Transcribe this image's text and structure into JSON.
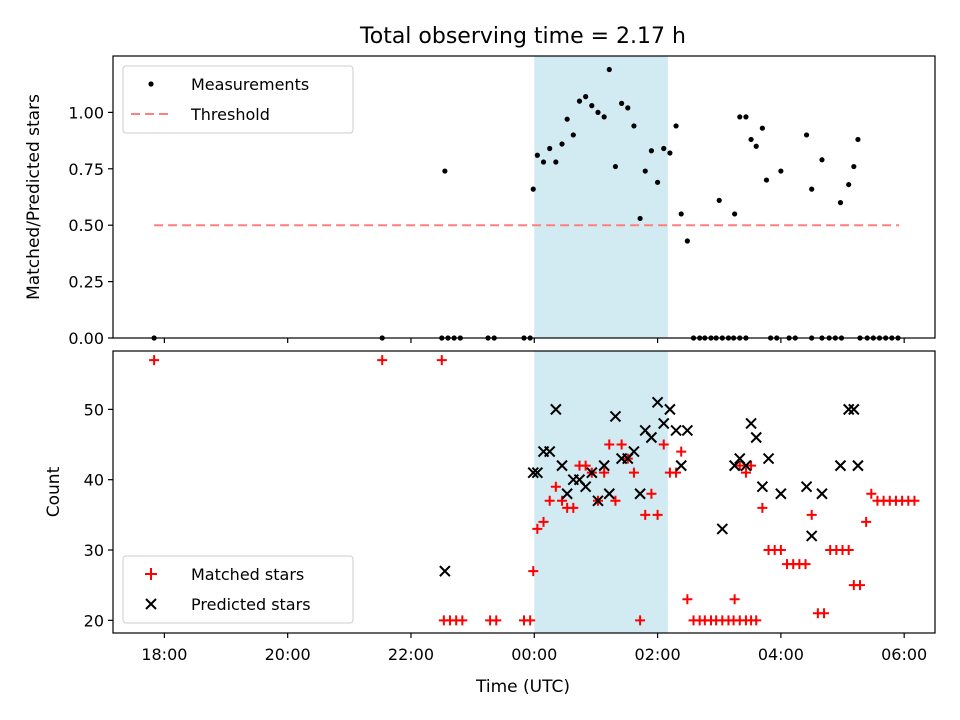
{
  "chart_data": {
    "type": "scatter",
    "title": "Total observing time = 2.17 h",
    "xlabel": "Time (UTC)",
    "x_unit": "hours (UTC, continuous across midnight)",
    "xlim": [
      "17:10",
      "06:30"
    ],
    "x_ticks": [
      "18:00",
      "20:00",
      "22:00",
      "00:00",
      "02:00",
      "04:00",
      "06:00"
    ],
    "shaded_interval": [
      "00:00",
      "02:10"
    ],
    "shade_color": "#add8e6",
    "panels": [
      {
        "id": "ratio",
        "ylabel": "Matched/Predicted stars",
        "ylim": [
          0,
          1.25
        ],
        "y_ticks": [
          "0.00",
          "0.25",
          "0.50",
          "0.75",
          "1.00"
        ],
        "legend": {
          "placement": "top-left",
          "entries": [
            "Measurements",
            "Threshold"
          ]
        },
        "threshold": {
          "name": "Threshold",
          "value": 0.5,
          "x_range": [
            "17:50",
            "05:55"
          ],
          "color": "#ff7f7f",
          "style": "dashed"
        },
        "series": [
          {
            "name": "Measurements",
            "marker": "dot",
            "color": "#000000",
            "points": [
              [
                "17:50",
                0.0
              ],
              [
                "21:32",
                0.0
              ],
              [
                "22:30",
                0.0
              ],
              [
                "22:36",
                0.0
              ],
              [
                "22:42",
                0.0
              ],
              [
                "22:48",
                0.0
              ],
              [
                "23:15",
                0.0
              ],
              [
                "23:21",
                0.0
              ],
              [
                "23:50",
                0.0
              ],
              [
                "23:56",
                0.0
              ],
              [
                "22:33",
                0.74
              ],
              [
                "23:59",
                0.66
              ],
              [
                "00:03",
                0.81
              ],
              [
                "00:09",
                0.78
              ],
              [
                "00:15",
                0.84
              ],
              [
                "00:21",
                0.78
              ],
              [
                "00:27",
                0.86
              ],
              [
                "00:32",
                0.97
              ],
              [
                "00:38",
                0.9
              ],
              [
                "00:44",
                1.05
              ],
              [
                "00:50",
                1.07
              ],
              [
                "00:56",
                1.03
              ],
              [
                "01:02",
                1.0
              ],
              [
                "01:08",
                0.98
              ],
              [
                "01:13",
                1.19
              ],
              [
                "01:19",
                0.76
              ],
              [
                "01:25",
                1.04
              ],
              [
                "01:31",
                1.02
              ],
              [
                "01:37",
                0.94
              ],
              [
                "01:43",
                0.53
              ],
              [
                "01:48",
                0.74
              ],
              [
                "01:54",
                0.83
              ],
              [
                "02:00",
                0.69
              ],
              [
                "02:06",
                0.84
              ],
              [
                "02:12",
                0.82
              ],
              [
                "02:18",
                0.94
              ],
              [
                "02:23",
                0.55
              ],
              [
                "02:29",
                0.43
              ],
              [
                "02:35",
                0.0
              ],
              [
                "02:41",
                0.0
              ],
              [
                "02:46",
                0.0
              ],
              [
                "02:52",
                0.0
              ],
              [
                "02:57",
                0.0
              ],
              [
                "03:03",
                0.0
              ],
              [
                "03:09",
                0.0
              ],
              [
                "03:14",
                0.0
              ],
              [
                "03:20",
                0.0
              ],
              [
                "03:26",
                0.0
              ],
              [
                "03:00",
                0.61
              ],
              [
                "03:15",
                0.55
              ],
              [
                "03:20",
                0.98
              ],
              [
                "03:26",
                0.98
              ],
              [
                "03:31",
                0.88
              ],
              [
                "03:36",
                0.85
              ],
              [
                "03:42",
                0.93
              ],
              [
                "03:46",
                0.7
              ],
              [
                "04:00",
                0.74
              ],
              [
                "04:25",
                0.9
              ],
              [
                "04:30",
                0.66
              ],
              [
                "04:40",
                0.79
              ],
              [
                "04:58",
                0.6
              ],
              [
                "05:06",
                0.68
              ],
              [
                "05:11",
                0.76
              ],
              [
                "05:15",
                0.88
              ],
              [
                "03:50",
                0.0
              ],
              [
                "03:56",
                0.0
              ],
              [
                "04:08",
                0.0
              ],
              [
                "04:14",
                0.0
              ],
              [
                "04:30",
                0.0
              ],
              [
                "04:40",
                0.0
              ],
              [
                "04:47",
                0.0
              ],
              [
                "04:53",
                0.0
              ],
              [
                "04:59",
                0.0
              ],
              [
                "05:17",
                0.0
              ],
              [
                "05:24",
                0.0
              ],
              [
                "05:30",
                0.0
              ],
              [
                "05:36",
                0.0
              ],
              [
                "05:42",
                0.0
              ],
              [
                "05:48",
                0.0
              ],
              [
                "05:54",
                0.0
              ]
            ]
          }
        ]
      },
      {
        "id": "counts",
        "ylabel": "Count",
        "ylim": [
          18.2,
          58.3
        ],
        "y_ticks": [
          "20",
          "30",
          "40",
          "50"
        ],
        "legend": {
          "placement": "bottom-left",
          "entries": [
            "Matched stars",
            "Predicted stars"
          ]
        },
        "series": [
          {
            "name": "Matched stars",
            "marker": "plus",
            "color": "#ff0000",
            "points": [
              [
                "17:50",
                57
              ],
              [
                "21:32",
                57
              ],
              [
                "22:30",
                57
              ],
              [
                "22:32",
                20
              ],
              [
                "22:38",
                20
              ],
              [
                "22:44",
                20
              ],
              [
                "22:50",
                20
              ],
              [
                "23:17",
                20
              ],
              [
                "23:23",
                20
              ],
              [
                "23:50",
                20
              ],
              [
                "23:56",
                20
              ],
              [
                "23:59",
                27
              ],
              [
                "00:03",
                33
              ],
              [
                "00:09",
                34
              ],
              [
                "00:15",
                37
              ],
              [
                "00:21",
                39
              ],
              [
                "00:27",
                37
              ],
              [
                "00:32",
                36
              ],
              [
                "00:38",
                36
              ],
              [
                "00:44",
                42
              ],
              [
                "00:50",
                42
              ],
              [
                "00:56",
                41
              ],
              [
                "01:02",
                37
              ],
              [
                "01:08",
                41
              ],
              [
                "01:13",
                45
              ],
              [
                "01:19",
                37
              ],
              [
                "01:25",
                45
              ],
              [
                "01:31",
                43
              ],
              [
                "01:37",
                41
              ],
              [
                "01:43",
                20
              ],
              [
                "01:48",
                35
              ],
              [
                "01:54",
                38
              ],
              [
                "02:00",
                35
              ],
              [
                "02:06",
                45
              ],
              [
                "02:12",
                41
              ],
              [
                "02:18",
                41
              ],
              [
                "02:23",
                44
              ],
              [
                "02:29",
                23
              ],
              [
                "02:35",
                20
              ],
              [
                "02:41",
                20
              ],
              [
                "02:46",
                20
              ],
              [
                "02:52",
                20
              ],
              [
                "02:57",
                20
              ],
              [
                "03:03",
                20
              ],
              [
                "03:09",
                20
              ],
              [
                "03:14",
                20
              ],
              [
                "03:20",
                20
              ],
              [
                "03:26",
                20
              ],
              [
                "03:31",
                20
              ],
              [
                "03:36",
                20
              ],
              [
                "03:15",
                23
              ],
              [
                "03:20",
                42
              ],
              [
                "03:26",
                41
              ],
              [
                "03:31",
                42
              ],
              [
                "03:42",
                36
              ],
              [
                "03:48",
                30
              ],
              [
                "03:54",
                30
              ],
              [
                "04:00",
                30
              ],
              [
                "04:06",
                28
              ],
              [
                "04:12",
                28
              ],
              [
                "04:18",
                28
              ],
              [
                "04:24",
                28
              ],
              [
                "04:30",
                35
              ],
              [
                "04:36",
                21
              ],
              [
                "04:42",
                21
              ],
              [
                "04:48",
                30
              ],
              [
                "04:54",
                30
              ],
              [
                "05:00",
                30
              ],
              [
                "05:06",
                30
              ],
              [
                "05:11",
                25
              ],
              [
                "05:17",
                25
              ],
              [
                "05:23",
                34
              ],
              [
                "05:28",
                38
              ],
              [
                "05:34",
                37
              ],
              [
                "05:40",
                37
              ],
              [
                "05:46",
                37
              ],
              [
                "05:52",
                37
              ],
              [
                "05:58",
                37
              ],
              [
                "06:04",
                37
              ],
              [
                "06:10",
                37
              ]
            ]
          },
          {
            "name": "Predicted stars",
            "marker": "x",
            "color": "#000000",
            "points": [
              [
                "22:33",
                27
              ],
              [
                "23:59",
                41
              ],
              [
                "00:03",
                41
              ],
              [
                "00:09",
                44
              ],
              [
                "00:15",
                44
              ],
              [
                "00:21",
                50
              ],
              [
                "00:27",
                42
              ],
              [
                "00:32",
                38
              ],
              [
                "00:38",
                40
              ],
              [
                "00:44",
                40
              ],
              [
                "00:50",
                39
              ],
              [
                "00:56",
                41
              ],
              [
                "01:02",
                37
              ],
              [
                "01:08",
                42
              ],
              [
                "01:13",
                38
              ],
              [
                "01:19",
                49
              ],
              [
                "01:25",
                43
              ],
              [
                "01:31",
                43
              ],
              [
                "01:37",
                44
              ],
              [
                "01:43",
                38
              ],
              [
                "01:48",
                47
              ],
              [
                "01:54",
                46
              ],
              [
                "02:00",
                51
              ],
              [
                "02:06",
                48
              ],
              [
                "02:12",
                50
              ],
              [
                "02:18",
                47
              ],
              [
                "02:23",
                42
              ],
              [
                "02:29",
                47
              ],
              [
                "03:03",
                33
              ],
              [
                "03:15",
                42
              ],
              [
                "03:20",
                43
              ],
              [
                "03:26",
                42
              ],
              [
                "03:31",
                48
              ],
              [
                "03:36",
                46
              ],
              [
                "03:42",
                39
              ],
              [
                "03:48",
                43
              ],
              [
                "04:00",
                38
              ],
              [
                "04:25",
                39
              ],
              [
                "04:30",
                32
              ],
              [
                "04:40",
                38
              ],
              [
                "04:58",
                42
              ],
              [
                "05:06",
                50
              ],
              [
                "05:11",
                50
              ],
              [
                "05:15",
                42
              ]
            ]
          }
        ]
      }
    ]
  }
}
